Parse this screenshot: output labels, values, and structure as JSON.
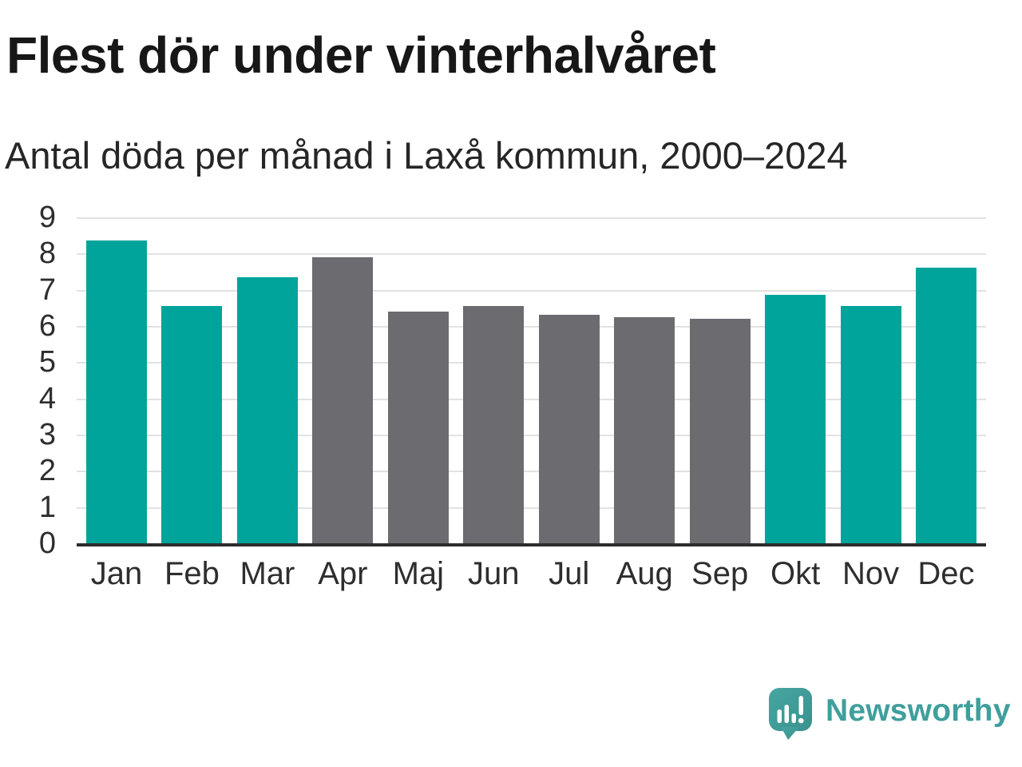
{
  "header": {
    "title": "Flest dör under vinterhalvåret",
    "subtitle": "Antal döda per månad i Laxå kommun, 2000–2024"
  },
  "chart_data": {
    "type": "bar",
    "title": "Flest dör under vinterhalvåret",
    "subtitle": "Antal döda per månad i Laxå kommun, 2000–2024",
    "categories": [
      "Jan",
      "Feb",
      "Mar",
      "Apr",
      "Maj",
      "Jun",
      "Jul",
      "Aug",
      "Sep",
      "Okt",
      "Nov",
      "Dec"
    ],
    "values": [
      8.35,
      6.55,
      7.35,
      7.9,
      6.4,
      6.55,
      6.3,
      6.25,
      6.2,
      6.85,
      6.55,
      7.6
    ],
    "bar_colors": [
      "#00a49a",
      "#00a49a",
      "#00a49a",
      "#6b6b70",
      "#6b6b70",
      "#6b6b70",
      "#6b6b70",
      "#6b6b70",
      "#6b6b70",
      "#00a49a",
      "#00a49a",
      "#00a49a"
    ],
    "colors": {
      "winter_highlight": "#00a49a",
      "summer": "#6b6b70",
      "gridline": "#e2e2e2",
      "axis": "#2d2d2d"
    },
    "xlabel": "",
    "ylabel": "",
    "ylim": [
      0,
      9
    ],
    "yticks": [
      0,
      1,
      2,
      3,
      4,
      5,
      6,
      7,
      8,
      9
    ],
    "grid": true,
    "legend": false
  },
  "footer": {
    "brand": "Newsworthy",
    "brand_color": "#3f9f9c",
    "logo_color": "#44a19e",
    "logo_color_dark": "#3a918e"
  }
}
